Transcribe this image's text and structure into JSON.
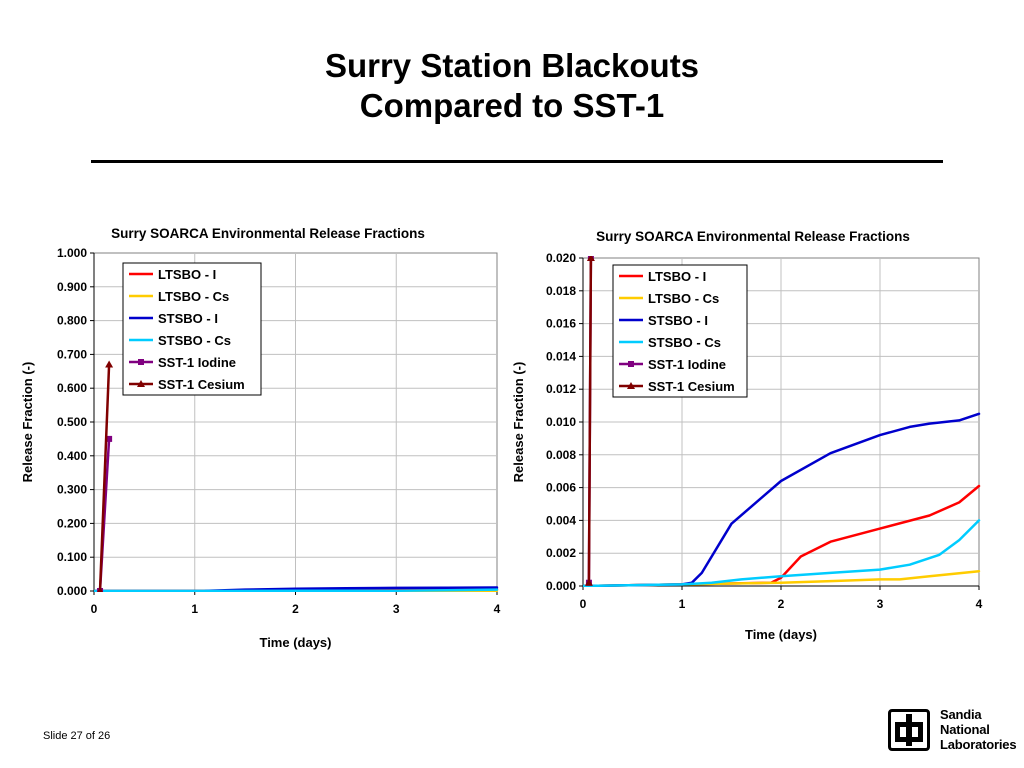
{
  "slide": {
    "title_line_1": "Surry Station Blackouts",
    "title_line_2": "Compared to SST-1",
    "slide_number": "Slide 27 of 26"
  },
  "logo": {
    "line_1": "Sandia",
    "line_2": "National",
    "line_3": "Laboratories"
  },
  "chart_data": [
    {
      "type": "line",
      "title": "Surry SOARCA Environmental Release Fractions",
      "xlabel": "Time (days)",
      "ylabel": "Release Fraction (-)",
      "xlim": [
        0,
        4
      ],
      "ylim": [
        0,
        1.0
      ],
      "x_ticks": [
        "0",
        "1",
        "2",
        "3",
        "4"
      ],
      "y_ticks": [
        "0.000",
        "0.100",
        "0.200",
        "0.300",
        "0.400",
        "0.500",
        "0.600",
        "0.700",
        "0.800",
        "0.900",
        "1.000"
      ],
      "grid": true,
      "legend_position": "top-left",
      "series": [
        {
          "name": "LTSBO - I",
          "color": "#ff0000",
          "marker": "none",
          "x": [
            0,
            2.0,
            2.5,
            3.0,
            3.5,
            4.0
          ],
          "y": [
            0,
            0.0002,
            0.002,
            0.0035,
            0.0045,
            0.006
          ]
        },
        {
          "name": "LTSBO - Cs",
          "color": "#ffcc00",
          "marker": "none",
          "x": [
            0,
            2.0,
            3.0,
            3.5,
            4.0
          ],
          "y": [
            0,
            0.0001,
            0.0003,
            0.0006,
            0.0009
          ]
        },
        {
          "name": "STSBO - I",
          "color": "#0000cc",
          "marker": "none",
          "x": [
            0,
            1.1,
            1.5,
            2.0,
            2.5,
            3.0,
            3.5,
            4.0
          ],
          "y": [
            0,
            0.0002,
            0.004,
            0.0065,
            0.008,
            0.0092,
            0.0098,
            0.0105
          ]
        },
        {
          "name": "STSBO - Cs",
          "color": "#00ccff",
          "marker": "none",
          "x": [
            0,
            1.0,
            2.0,
            3.0,
            3.5,
            4.0
          ],
          "y": [
            0,
            0.0001,
            0.0005,
            0.001,
            0.002,
            0.004
          ]
        },
        {
          "name": "SST-1  Iodine",
          "color": "#800080",
          "marker": "square",
          "x": [
            0.06,
            0.15
          ],
          "y": [
            0,
            0.45
          ]
        },
        {
          "name": "SST-1 Cesium",
          "color": "#800000",
          "marker": "triangle",
          "x": [
            0.06,
            0.15
          ],
          "y": [
            0,
            0.67
          ]
        }
      ]
    },
    {
      "type": "line",
      "title": "Surry SOARCA Environmental Release Fractions",
      "xlabel": "Time (days)",
      "ylabel": "Release Fraction (-)",
      "xlim": [
        0,
        4
      ],
      "ylim": [
        0,
        0.02
      ],
      "x_ticks": [
        "0",
        "1",
        "2",
        "3",
        "4"
      ],
      "y_ticks": [
        "0.000",
        "0.002",
        "0.004",
        "0.006",
        "0.008",
        "0.010",
        "0.012",
        "0.014",
        "0.016",
        "0.018",
        "0.020"
      ],
      "grid": true,
      "legend_position": "top-right",
      "series": [
        {
          "name": "LTSBO - I",
          "color": "#ff0000",
          "marker": "none",
          "x": [
            0,
            1.0,
            1.9,
            2.0,
            2.2,
            2.5,
            3.0,
            3.5,
            3.8,
            4.0
          ],
          "y": [
            0,
            0.0001,
            0.0002,
            0.0005,
            0.0018,
            0.0027,
            0.0035,
            0.0043,
            0.0051,
            0.0061
          ]
        },
        {
          "name": "LTSBO - Cs",
          "color": "#ffcc00",
          "marker": "none",
          "x": [
            0,
            1.0,
            2.0,
            2.5,
            3.0,
            3.2,
            3.5,
            4.0
          ],
          "y": [
            0,
            0.0001,
            0.0002,
            0.0003,
            0.0004,
            0.0004,
            0.0006,
            0.0009
          ]
        },
        {
          "name": "STSBO - I",
          "color": "#0000cc",
          "marker": "none",
          "x": [
            0,
            1.0,
            1.1,
            1.2,
            1.5,
            2.0,
            2.5,
            3.0,
            3.3,
            3.5,
            3.8,
            4.0
          ],
          "y": [
            0,
            0.0001,
            0.0002,
            0.0008,
            0.0038,
            0.0064,
            0.0081,
            0.0092,
            0.0097,
            0.0099,
            0.0101,
            0.0105
          ]
        },
        {
          "name": "STSBO - Cs",
          "color": "#00ccff",
          "marker": "none",
          "x": [
            0,
            1.0,
            1.3,
            1.6,
            2.0,
            2.5,
            3.0,
            3.3,
            3.6,
            3.8,
            4.0
          ],
          "y": [
            0,
            0.0001,
            0.0002,
            0.0004,
            0.0006,
            0.0008,
            0.001,
            0.0013,
            0.0019,
            0.0028,
            0.004
          ]
        },
        {
          "name": "SST-1  Iodine",
          "color": "#800080",
          "marker": "square",
          "x": [
            0.06,
            0.08
          ],
          "y": [
            0.0002,
            0.02
          ]
        },
        {
          "name": "SST-1 Cesium",
          "color": "#800000",
          "marker": "triangle",
          "x": [
            0.06,
            0.08
          ],
          "y": [
            0.0002,
            0.02
          ]
        }
      ]
    }
  ]
}
